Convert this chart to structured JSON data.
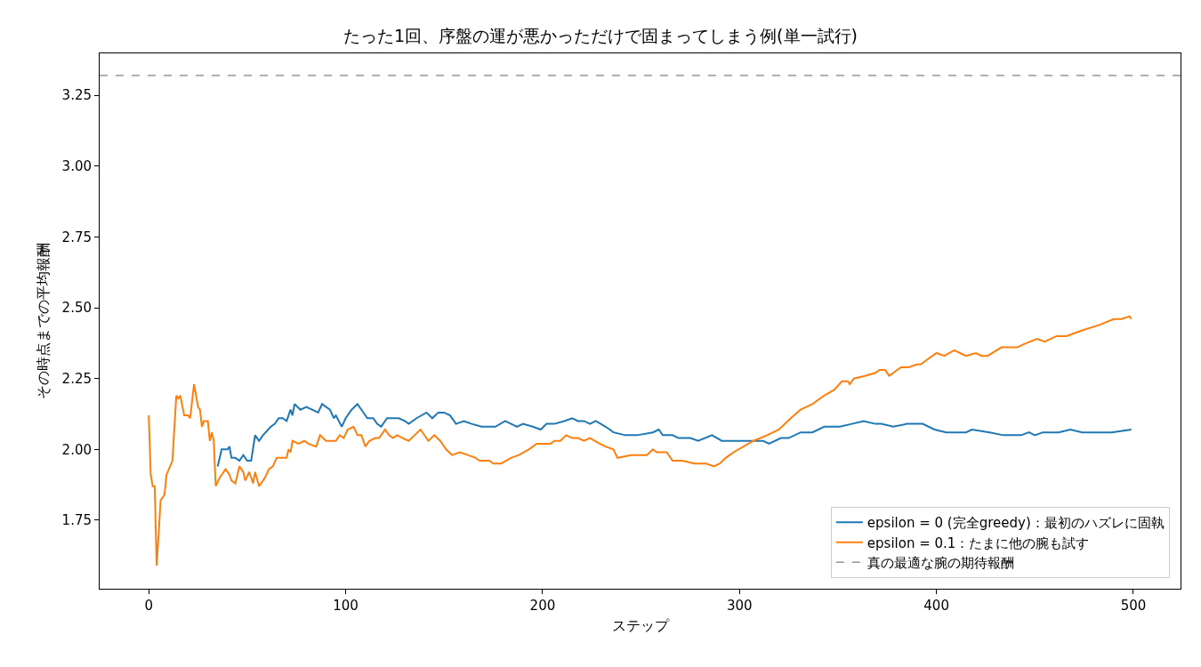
{
  "chart_data": {
    "type": "line",
    "title": "たった1回、序盤の運が悪かっただけで固まってしまう例(単一試行)",
    "xlabel": "ステップ",
    "ylabel": "その時点までの平均報酬",
    "xlim": [
      -24.95,
      523.95
    ],
    "ylim": [
      1.508,
      3.398
    ],
    "xticks": [
      0,
      100,
      200,
      300,
      400,
      500
    ],
    "yticks": [
      {
        "value": 1.75,
        "label": "1.75"
      },
      {
        "value": 2,
        "label": "2.00"
      },
      {
        "value": 2.25,
        "label": "2.25"
      },
      {
        "value": 2.5,
        "label": "2.50"
      },
      {
        "value": 2.75,
        "label": "2.75"
      },
      {
        "value": 3,
        "label": "3.00"
      },
      {
        "value": 3.25,
        "label": "3.25"
      }
    ],
    "grid": false,
    "legend": "bottom right",
    "line_style": "solid",
    "marker": "none",
    "ref_lines": [
      {
        "axis": "y",
        "value": 3.32,
        "label": "真の最適な腕の期待報酬",
        "color": "#808080",
        "line_style": "dashed"
      }
    ],
    "series": [
      {
        "name": "epsilon = 0 (完全greedy)：最初のハズレに固執",
        "color": "#1f77b4",
        "x": [
          35,
          37,
          38,
          40,
          41,
          42,
          44,
          46,
          48,
          50,
          52,
          54,
          56,
          58,
          62,
          64,
          66,
          68,
          70,
          72,
          73,
          74,
          77,
          80,
          83,
          86,
          88,
          92,
          94,
          95,
          98,
          100,
          103,
          106,
          108,
          111,
          114,
          116,
          118,
          121,
          124,
          127,
          130,
          132,
          136,
          141,
          144,
          147,
          150,
          153,
          156,
          160,
          164,
          169,
          173,
          176,
          181,
          184,
          187,
          190,
          195,
          199,
          202,
          206,
          211,
          215,
          218,
          221,
          224,
          227,
          232,
          236,
          242,
          248,
          256,
          259,
          261,
          266,
          269,
          275,
          279,
          286,
          291,
          295,
          301,
          307,
          312,
          315,
          321,
          325,
          331,
          337,
          343,
          351,
          357,
          363,
          369,
          372,
          378,
          385,
          393,
          399,
          405,
          411,
          415,
          418,
          427,
          434,
          440,
          443,
          447,
          450,
          454,
          462,
          468,
          474,
          480,
          489,
          499
        ],
        "values": [
          1.94,
          2,
          2,
          2,
          2.01,
          1.97,
          1.97,
          1.96,
          1.98,
          1.96,
          1.96,
          2.05,
          2.03,
          2.05,
          2.08,
          2.09,
          2.11,
          2.11,
          2.1,
          2.14,
          2.12,
          2.16,
          2.14,
          2.15,
          2.14,
          2.13,
          2.16,
          2.14,
          2.11,
          2.12,
          2.08,
          2.11,
          2.14,
          2.16,
          2.14,
          2.11,
          2.11,
          2.09,
          2.08,
          2.11,
          2.11,
          2.11,
          2.1,
          2.09,
          2.11,
          2.13,
          2.11,
          2.13,
          2.13,
          2.12,
          2.09,
          2.1,
          2.09,
          2.08,
          2.08,
          2.08,
          2.1,
          2.09,
          2.08,
          2.09,
          2.08,
          2.07,
          2.09,
          2.09,
          2.1,
          2.11,
          2.1,
          2.1,
          2.09,
          2.1,
          2.08,
          2.06,
          2.05,
          2.05,
          2.06,
          2.07,
          2.05,
          2.05,
          2.04,
          2.04,
          2.03,
          2.05,
          2.03,
          2.03,
          2.03,
          2.03,
          2.03,
          2.02,
          2.04,
          2.04,
          2.06,
          2.06,
          2.08,
          2.08,
          2.09,
          2.1,
          2.09,
          2.09,
          2.08,
          2.09,
          2.09,
          2.07,
          2.06,
          2.06,
          2.06,
          2.07,
          2.06,
          2.05,
          2.05,
          2.05,
          2.06,
          2.05,
          2.06,
          2.06,
          2.07,
          2.06,
          2.06,
          2.06,
          2.07
        ]
      },
      {
        "name": "epsilon = 0.1：たまに他の腕も試す",
        "color": "#ff7f0e",
        "x": [
          0,
          1,
          2,
          3,
          4,
          5,
          6,
          8,
          9,
          12,
          14,
          15,
          16,
          18,
          20,
          21,
          23,
          25,
          26,
          27,
          28,
          30,
          31,
          32,
          33,
          34,
          36,
          37,
          39,
          41,
          42,
          44,
          46,
          48,
          49,
          51,
          53,
          54,
          56,
          59,
          61,
          63,
          65,
          68,
          70,
          71,
          72,
          73,
          76,
          79,
          81,
          85,
          87,
          90,
          95,
          97,
          99,
          101,
          104,
          106,
          108,
          110,
          112,
          115,
          117,
          120,
          122,
          124,
          126,
          129,
          132,
          135,
          138,
          142,
          145,
          148,
          151,
          154,
          158,
          162,
          166,
          168,
          173,
          175,
          179,
          184,
          188,
          193,
          197,
          200,
          204,
          206,
          209,
          212,
          215,
          218,
          221,
          224,
          229,
          232,
          236,
          238,
          245,
          253,
          256,
          258,
          263,
          266,
          271,
          277,
          283,
          287,
          290,
          293,
          297,
          302,
          307,
          314,
          320,
          326,
          331,
          337,
          343,
          348,
          352,
          355,
          356,
          358,
          364,
          369,
          371,
          374,
          376,
          382,
          386,
          390,
          392,
          394,
          400,
          404,
          409,
          412,
          415,
          420,
          423,
          426,
          433,
          438,
          441,
          444,
          451,
          455,
          461,
          466,
          474,
          483,
          490,
          494,
          498,
          499
        ],
        "values": [
          2.12,
          1.91,
          1.87,
          1.87,
          1.59,
          1.7,
          1.82,
          1.84,
          1.91,
          1.96,
          2.19,
          2.18,
          2.19,
          2.12,
          2.12,
          2.11,
          2.23,
          2.15,
          2.14,
          2.08,
          2.1,
          2.1,
          2.03,
          2.06,
          2.03,
          1.87,
          1.9,
          1.91,
          1.93,
          1.91,
          1.89,
          1.88,
          1.94,
          1.92,
          1.89,
          1.92,
          1.88,
          1.92,
          1.87,
          1.9,
          1.93,
          1.94,
          1.97,
          1.97,
          1.97,
          2,
          1.99,
          2.03,
          2.02,
          2.03,
          2.02,
          2.01,
          2.05,
          2.03,
          2.03,
          2.05,
          2.04,
          2.07,
          2.08,
          2.05,
          2.05,
          2.01,
          2.03,
          2.04,
          2.04,
          2.07,
          2.05,
          2.04,
          2.05,
          2.04,
          2.03,
          2.05,
          2.07,
          2.03,
          2.05,
          2.03,
          2,
          1.98,
          1.99,
          1.98,
          1.97,
          1.96,
          1.96,
          1.95,
          1.95,
          1.97,
          1.98,
          2,
          2.02,
          2.02,
          2.02,
          2.03,
          2.03,
          2.05,
          2.04,
          2.04,
          2.03,
          2.04,
          2.02,
          2.01,
          2,
          1.97,
          1.98,
          1.98,
          2,
          1.99,
          1.99,
          1.96,
          1.96,
          1.95,
          1.95,
          1.94,
          1.95,
          1.97,
          1.99,
          2.01,
          2.03,
          2.05,
          2.07,
          2.11,
          2.14,
          2.16,
          2.19,
          2.21,
          2.24,
          2.24,
          2.23,
          2.25,
          2.26,
          2.27,
          2.28,
          2.28,
          2.26,
          2.29,
          2.29,
          2.3,
          2.3,
          2.31,
          2.34,
          2.33,
          2.35,
          2.34,
          2.33,
          2.34,
          2.33,
          2.33,
          2.36,
          2.36,
          2.36,
          2.37,
          2.39,
          2.38,
          2.4,
          2.4,
          2.42,
          2.44,
          2.46,
          2.46,
          2.47,
          2.46
        ]
      }
    ]
  }
}
